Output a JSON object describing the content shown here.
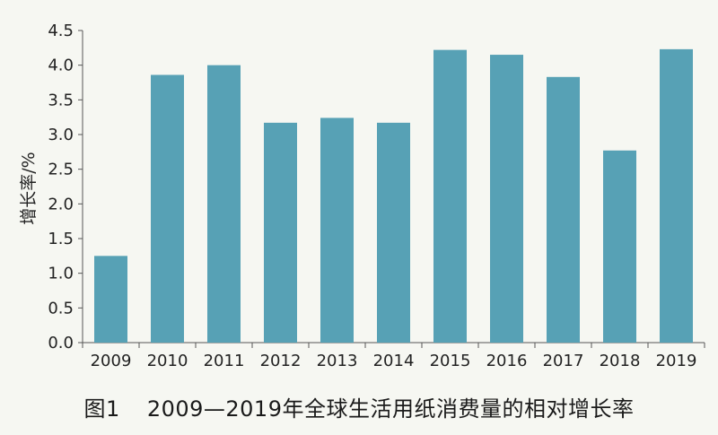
{
  "caption": {
    "figure_number": "图1",
    "title": "2009—2019年全球生活用纸消费量的相对增长率"
  },
  "colors": {
    "bar": "#57a1b5",
    "axis": "#555555",
    "background": "#f6f7f2"
  },
  "chart_data": {
    "type": "bar",
    "title": "2009—2019年全球生活用纸消费量的相对增长率",
    "xlabel": "",
    "ylabel": "增长率/%",
    "categories": [
      "2009",
      "2010",
      "2011",
      "2012",
      "2013",
      "2014",
      "2015",
      "2016",
      "2017",
      "2018",
      "2019"
    ],
    "values": [
      1.25,
      3.86,
      4.0,
      3.17,
      3.24,
      3.17,
      4.22,
      4.15,
      3.83,
      2.77,
      4.23
    ],
    "ylim": [
      0,
      4.5
    ],
    "yticks": [
      "0.0",
      "0.5",
      "1.0",
      "1.5",
      "2.0",
      "2.5",
      "3.0",
      "3.5",
      "4.0",
      "4.5"
    ],
    "grid": false,
    "legend": "none"
  }
}
